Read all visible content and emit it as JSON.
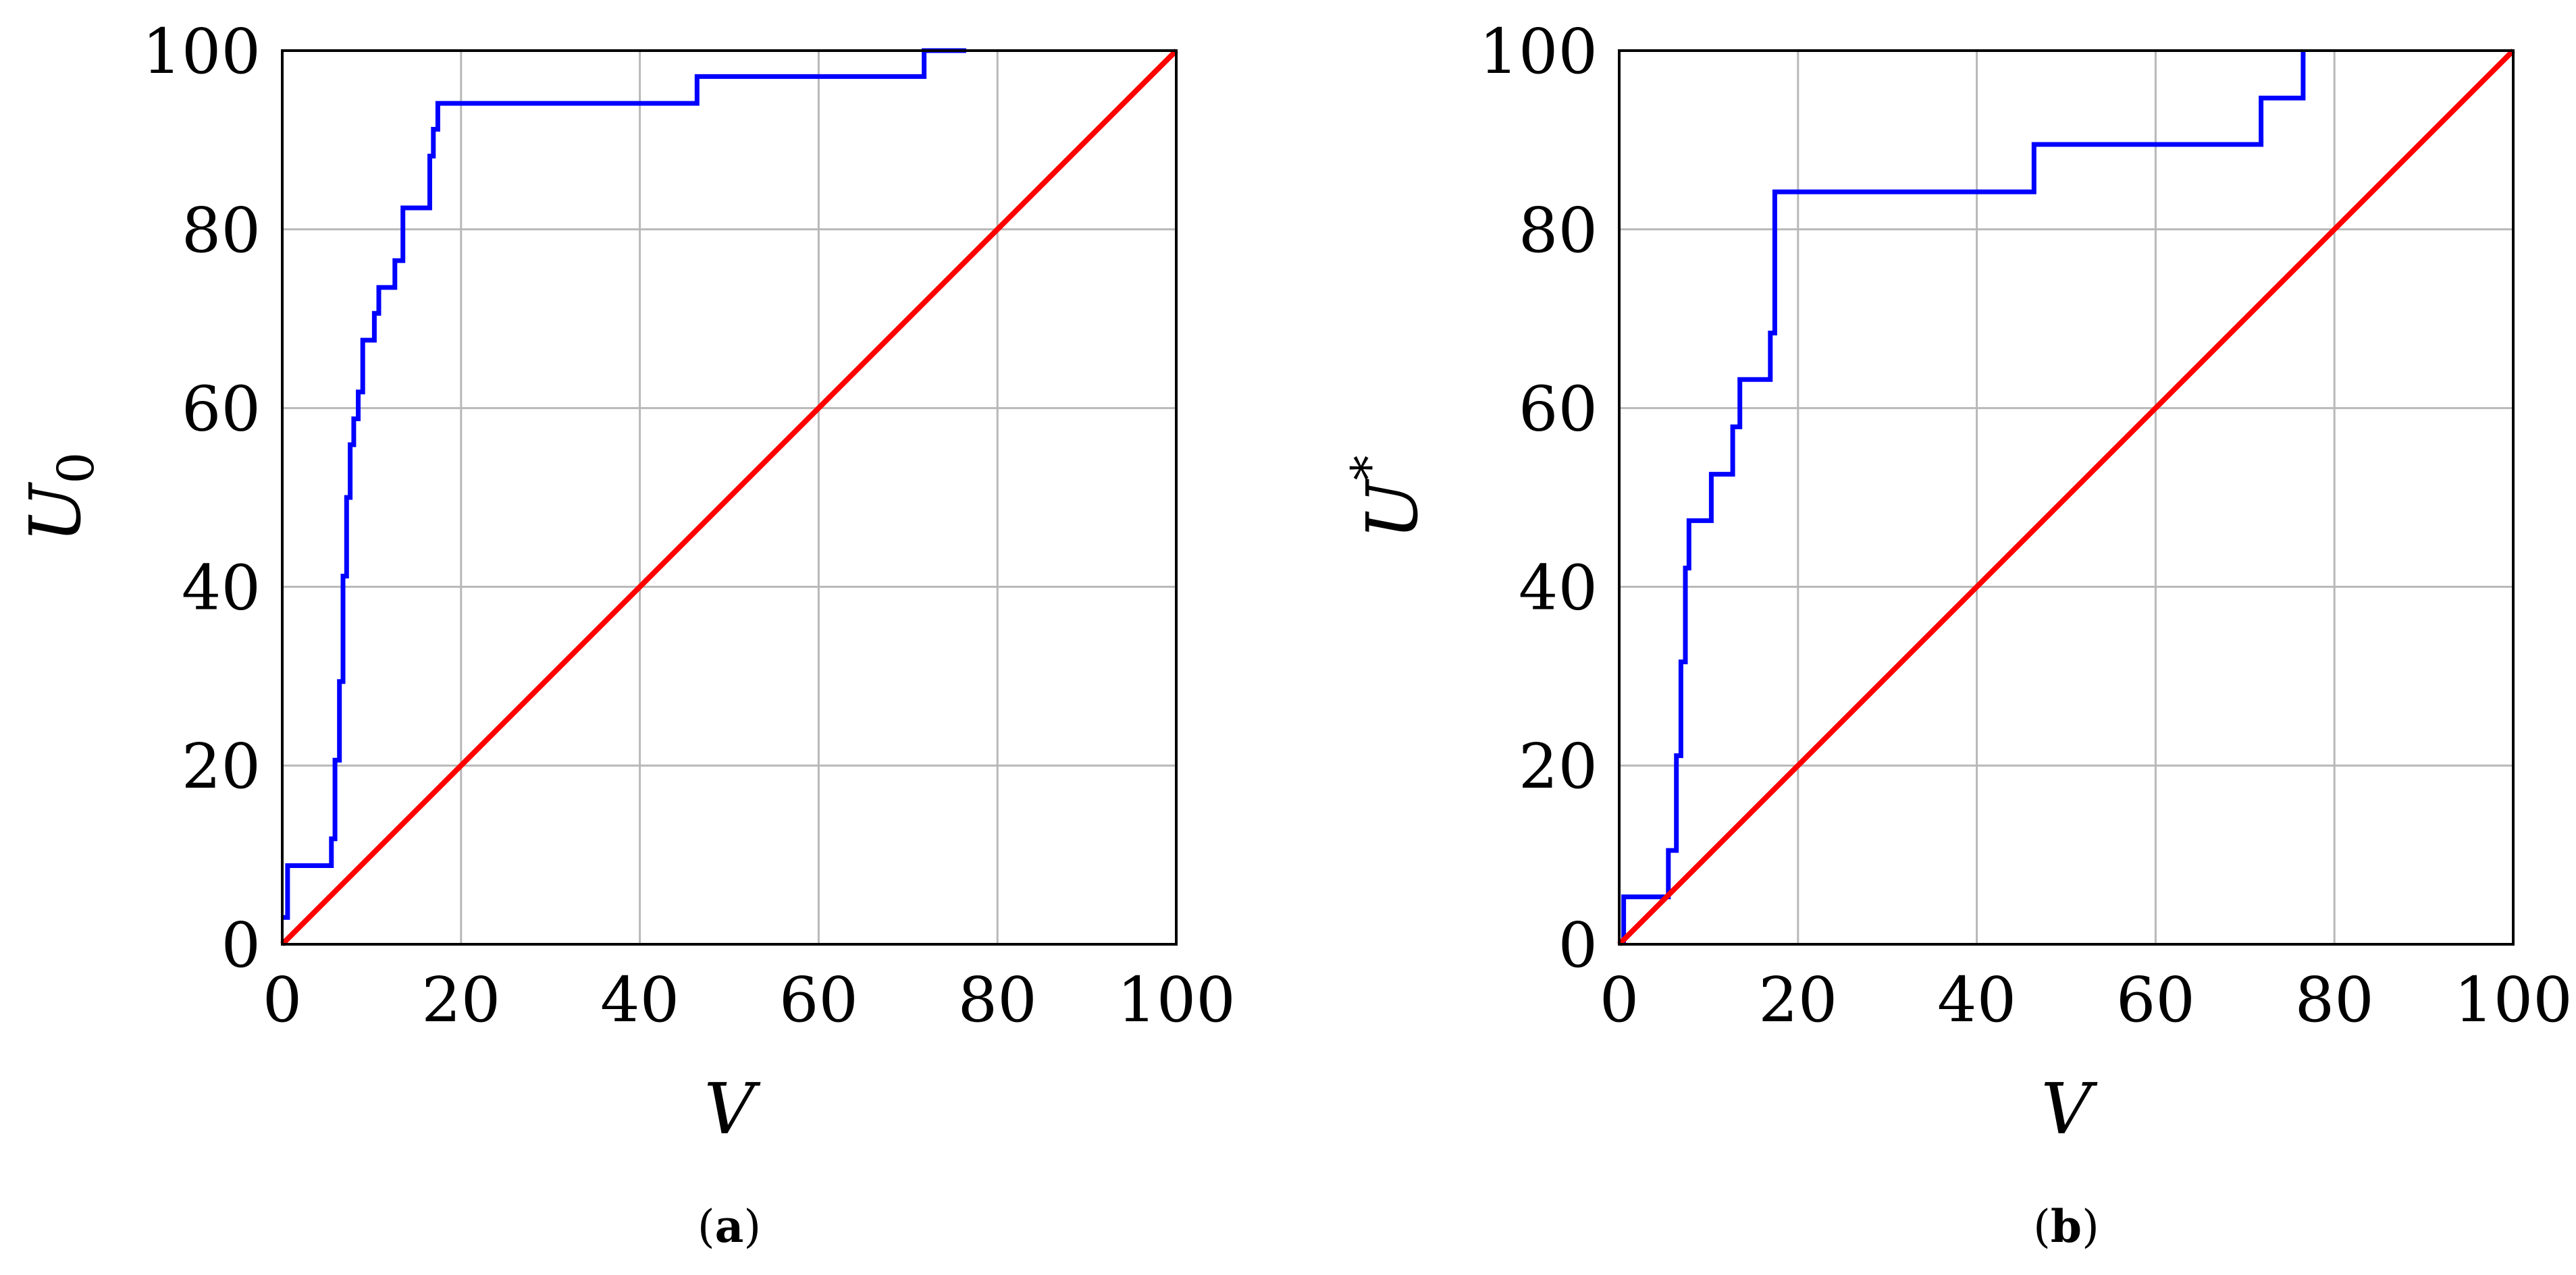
{
  "colors": {
    "empirical": "#0000ff",
    "reference": "#ff0000",
    "grid": "#b8b8b8",
    "frame": "#000000"
  },
  "chart_data": [
    {
      "type": "line",
      "panel": "(a)",
      "caption": {
        "open": "(",
        "letter": "a",
        "close": ")"
      },
      "xlabel": "V",
      "ylabel": {
        "base": "U",
        "sub": "0",
        "sup": ""
      },
      "xlim": [
        0,
        100
      ],
      "ylim": [
        0,
        100
      ],
      "xticks": [
        0,
        20,
        40,
        60,
        80,
        100
      ],
      "yticks": [
        0,
        20,
        40,
        60,
        80,
        100
      ],
      "grid": true,
      "series": [
        {
          "style": "step",
          "color": "#0000ff",
          "x": [
            0,
            0.6,
            0.6,
            5.5,
            5.5,
            5.9,
            5.9,
            6.4,
            6.4,
            6.8,
            6.8,
            7.2,
            7.2,
            7.6,
            7.6,
            8.0,
            8.0,
            8.5,
            8.5,
            9.0,
            9.0,
            10.3,
            10.3,
            10.8,
            10.8,
            12.6,
            12.6,
            13.5,
            13.5,
            16.5,
            16.5,
            16.9,
            16.9,
            17.4,
            17.4,
            46.4,
            46.4,
            71.8,
            71.8,
            76.5,
            76.5
          ],
          "y": [
            3,
            3,
            8.8,
            8.8,
            11.8,
            11.8,
            20.6,
            20.6,
            29.4,
            29.4,
            41.2,
            41.2,
            50,
            50,
            55.9,
            55.9,
            58.8,
            58.8,
            61.8,
            61.8,
            67.6,
            67.6,
            70.6,
            70.6,
            73.5,
            73.5,
            76.5,
            76.5,
            82.4,
            82.4,
            88.2,
            88.2,
            91.2,
            91.2,
            94.1,
            94.1,
            97.1,
            97.1,
            100,
            100,
            100
          ]
        },
        {
          "style": "line",
          "color": "#ff0000",
          "x": [
            0,
            100
          ],
          "y": [
            0,
            100
          ]
        }
      ]
    },
    {
      "type": "line",
      "panel": "(b)",
      "caption": {
        "open": "(",
        "letter": "b",
        "close": ")"
      },
      "xlabel": "V",
      "ylabel": {
        "base": "U",
        "sub": "",
        "sup": "*"
      },
      "xlim": [
        0,
        100
      ],
      "ylim": [
        0,
        100
      ],
      "xticks": [
        0,
        20,
        40,
        60,
        80,
        100
      ],
      "yticks": [
        0,
        20,
        40,
        60,
        80,
        100
      ],
      "grid": true,
      "series": [
        {
          "style": "step",
          "color": "#0000ff",
          "x": [
            0.5,
            0.5,
            5.5,
            5.5,
            6.4,
            6.4,
            6.9,
            6.9,
            7.4,
            7.4,
            7.8,
            7.8,
            10.3,
            10.3,
            12.7,
            12.7,
            13.5,
            13.5,
            16.9,
            16.9,
            17.4,
            17.4,
            46.4,
            46.4,
            71.8,
            71.8,
            76.5,
            76.5
          ],
          "y": [
            0,
            5.3,
            5.3,
            10.5,
            10.5,
            21.1,
            21.1,
            31.6,
            31.6,
            42.1,
            42.1,
            47.4,
            47.4,
            52.6,
            52.6,
            57.9,
            57.9,
            63.2,
            63.2,
            68.4,
            68.4,
            84.2,
            84.2,
            89.5,
            89.5,
            94.7,
            94.7,
            100
          ]
        },
        {
          "style": "line",
          "color": "#ff0000",
          "x": [
            0,
            100
          ],
          "y": [
            0,
            100
          ]
        }
      ]
    }
  ]
}
